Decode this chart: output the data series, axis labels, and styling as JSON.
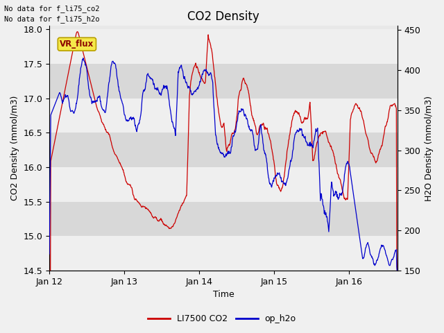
{
  "title": "CO2 Density",
  "xlabel": "Time",
  "ylabel_left": "CO2 Density (mmol/m3)",
  "ylabel_right": "H2O Density (mmol/m3)",
  "ylim_left": [
    14.5,
    18.05
  ],
  "ylim_right": [
    150,
    455
  ],
  "yticks_left": [
    14.5,
    15.0,
    15.5,
    16.0,
    16.5,
    17.0,
    17.5,
    18.0
  ],
  "yticks_right": [
    150,
    200,
    250,
    300,
    350,
    400,
    450
  ],
  "xtick_labels": [
    "Jan 12",
    "Jan 13",
    "Jan 14",
    "Jan 15",
    "Jan 16"
  ],
  "xtick_positions": [
    0,
    1,
    2,
    3,
    4
  ],
  "xlim": [
    0,
    4.65
  ],
  "annotation_text1": "No data for f_li75_co2",
  "annotation_text2": "No data for f_li75_h2o",
  "vr_flux_label": "VR_flux",
  "legend_entries": [
    "LI7500 CO2",
    "op_h2o"
  ],
  "line_colors": [
    "#cc0000",
    "#0000cc"
  ],
  "background_color": "#f0f0f0",
  "plot_bg_color": "#e8e8e8",
  "band_light": "#efefef",
  "band_dark": "#d8d8d8",
  "n_points": 1000,
  "seed": 7
}
